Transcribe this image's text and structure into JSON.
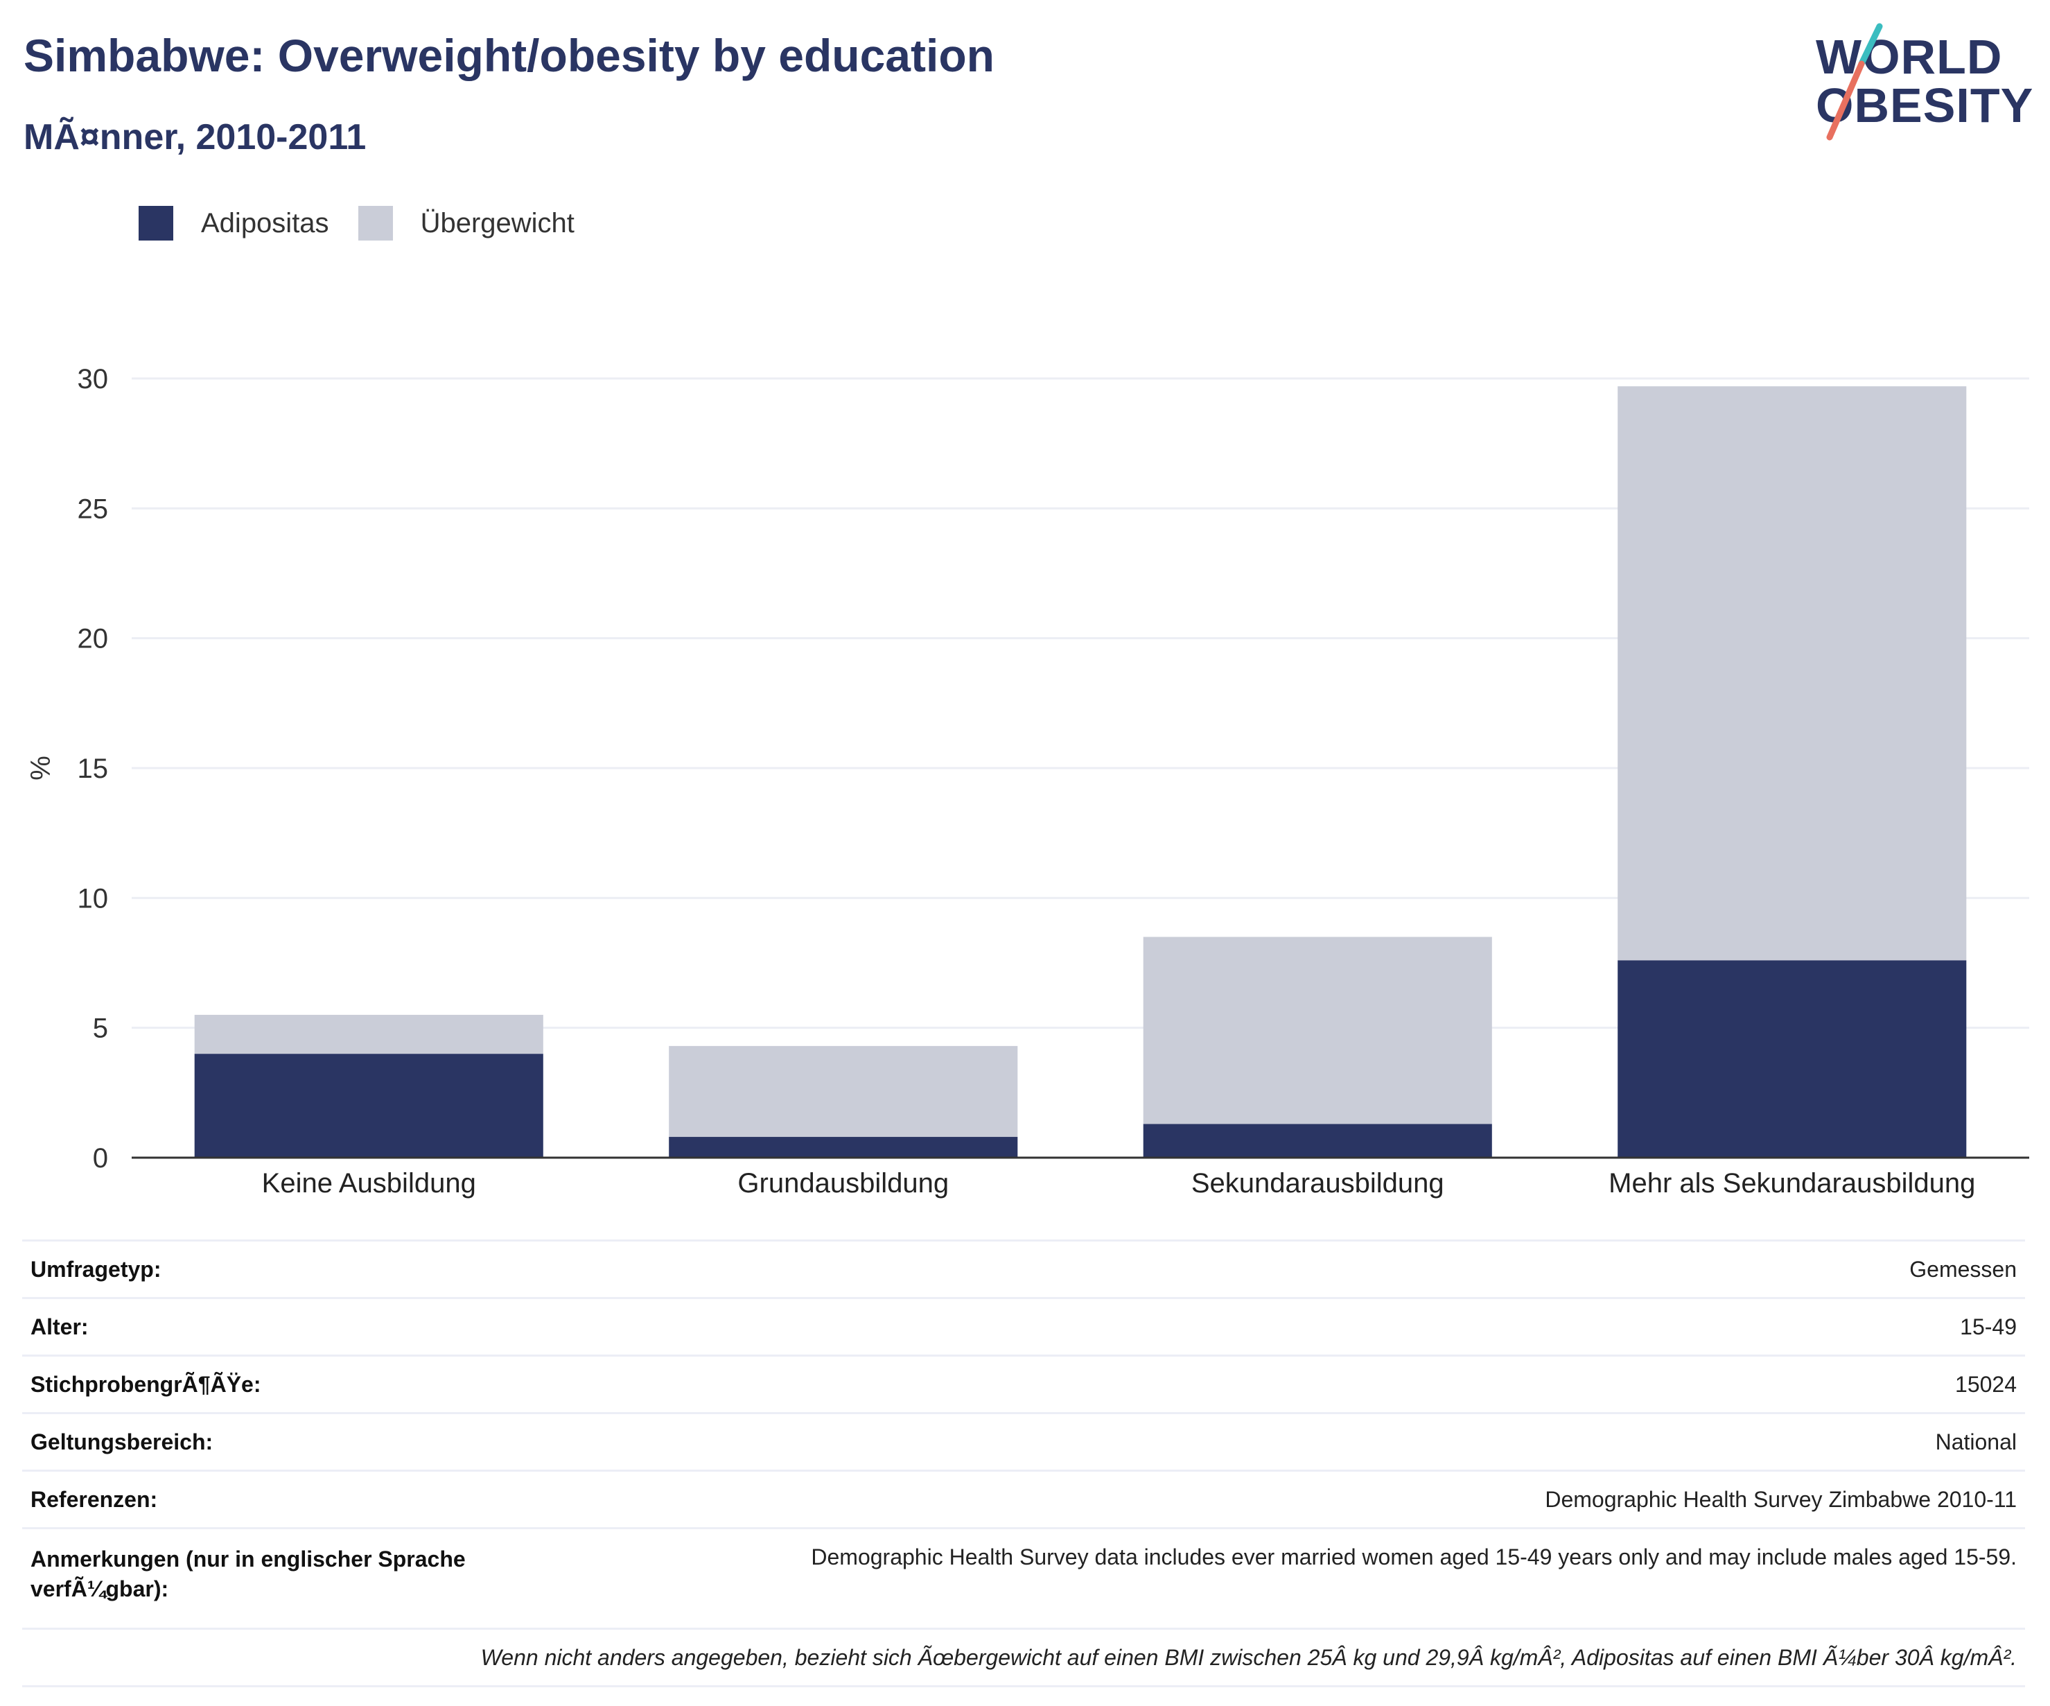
{
  "title": "Simbabwe: Overweight/obesity by education",
  "subtitle": "MÃ¤nner, 2010-2011",
  "logo": {
    "line1": "WORLD",
    "line2": "OBESITY"
  },
  "colors": {
    "adipositas": "#2a3563",
    "uebergewicht": "#cacdd8",
    "title": "#2a3563",
    "grid": "#eceef4",
    "axis": "#333333"
  },
  "chart_data": {
    "type": "bar",
    "stacked": true,
    "categories": [
      "Keine Ausbildung",
      "Grundausbildung",
      "Sekundarausbildung",
      "Mehr als Sekundarausbildung"
    ],
    "series": [
      {
        "name": "Adipositas",
        "values": [
          4.0,
          0.8,
          1.3,
          7.6
        ]
      },
      {
        "name": "Übergewicht",
        "values": [
          1.5,
          3.5,
          7.2,
          22.1
        ]
      }
    ],
    "ylabel": "%",
    "ylim": [
      0,
      30
    ],
    "yticks": [
      "0",
      "5",
      "10",
      "15",
      "20",
      "25",
      "30"
    ],
    "grid": true,
    "legend_position": "top-left"
  },
  "info": {
    "rows": [
      {
        "label": "Umfragetyp:",
        "value": "Gemessen"
      },
      {
        "label": "Alter:",
        "value": "15-49"
      },
      {
        "label": "StichprobengrÃ¶ÃŸe:",
        "value": "15024"
      },
      {
        "label": "Geltungsbereich:",
        "value": "National"
      },
      {
        "label": "Referenzen:",
        "value": "Demographic Health Survey Zimbabwe 2010-11"
      },
      {
        "label": "Anmerkungen (nur in englischer Sprache verfÃ¼gbar):",
        "value": "Demographic Health Survey data includes ever married women aged 15-49 years only and may include males aged 15-59."
      }
    ],
    "footnote": "Wenn nicht anders angegeben, bezieht sich Ãœbergewicht auf einen BMI zwischen 25Â kg und 29,9Â kg/mÂ², Adipositas auf einen BMI Ã¼ber 30Â kg/mÂ²."
  }
}
